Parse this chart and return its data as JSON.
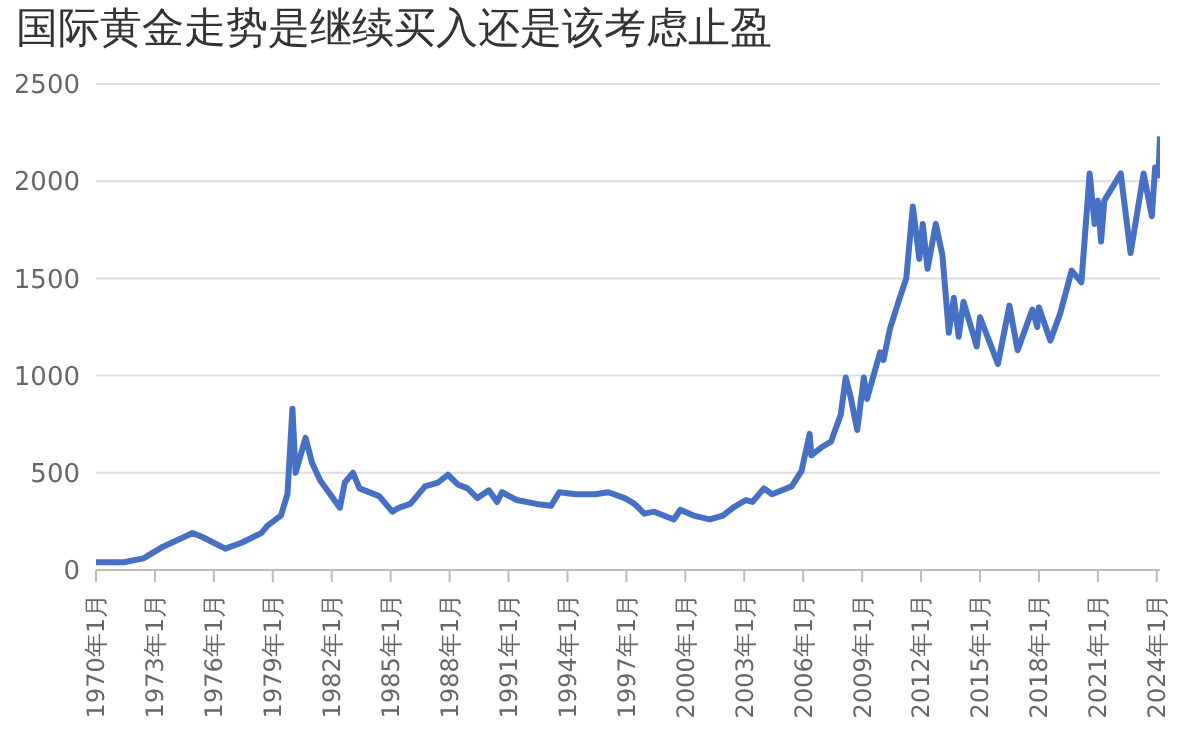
{
  "chart_data": {
    "type": "line",
    "title": "国际黄金走势是继续买入还是该考虑止盈",
    "x": [
      "1970-01",
      "1971-06",
      "1972-06",
      "1973-06",
      "1974-12",
      "1975-06",
      "1976-08",
      "1977-06",
      "1978-06",
      "1978-10",
      "1979-06",
      "1979-10",
      "1980-01",
      "1980-03",
      "1980-09",
      "1981-01",
      "1981-06",
      "1982-06",
      "1982-09",
      "1983-02",
      "1983-06",
      "1984-06",
      "1985-02",
      "1985-06",
      "1986-01",
      "1986-10",
      "1987-06",
      "1987-12",
      "1988-06",
      "1988-12",
      "1989-06",
      "1990-01",
      "1990-06",
      "1990-09",
      "1991-06",
      "1992-06",
      "1993-03",
      "1993-08",
      "1994-06",
      "1995-06",
      "1996-02",
      "1996-12",
      "1997-06",
      "1997-12",
      "1998-06",
      "1999-06",
      "1999-10",
      "2000-06",
      "2001-04",
      "2001-12",
      "2002-06",
      "2003-02",
      "2003-06",
      "2004-01",
      "2004-06",
      "2005-06",
      "2005-12",
      "2006-05",
      "2006-06",
      "2006-12",
      "2007-06",
      "2007-12",
      "2008-03",
      "2008-06",
      "2008-10",
      "2009-02",
      "2009-04",
      "2009-12",
      "2010-02",
      "2010-06",
      "2010-12",
      "2011-04",
      "2011-08",
      "2011-12",
      "2012-02",
      "2012-05",
      "2012-10",
      "2013-02",
      "2013-06",
      "2013-09",
      "2013-12",
      "2014-03",
      "2014-11",
      "2015-01",
      "2015-12",
      "2016-07",
      "2016-12",
      "2017-09",
      "2017-12",
      "2018-01",
      "2018-08",
      "2019-02",
      "2019-09",
      "2020-03",
      "2020-08",
      "2020-11",
      "2021-01",
      "2021-03",
      "2021-05",
      "2022-03",
      "2022-09",
      "2023-05",
      "2023-10",
      "2023-12",
      "2024-02",
      "2024-03"
    ],
    "series": [
      {
        "color": "#4670c4",
        "values": [
          40,
          40,
          60,
          120,
          190,
          170,
          110,
          140,
          190,
          230,
          280,
          390,
          830,
          500,
          680,
          550,
          460,
          320,
          450,
          500,
          420,
          380,
          300,
          320,
          340,
          430,
          450,
          490,
          440,
          420,
          370,
          410,
          350,
          400,
          360,
          340,
          330,
          400,
          390,
          390,
          400,
          370,
          340,
          290,
          300,
          260,
          310,
          280,
          260,
          280,
          320,
          360,
          350,
          420,
          390,
          430,
          510,
          700,
          590,
          630,
          660,
          800,
          990,
          890,
          720,
          990,
          880,
          1120,
          1080,
          1240,
          1400,
          1500,
          1870,
          1600,
          1780,
          1550,
          1780,
          1620,
          1220,
          1400,
          1200,
          1380,
          1150,
          1300,
          1060,
          1360,
          1130,
          1340,
          1250,
          1350,
          1180,
          1320,
          1540,
          1480,
          2040,
          1780,
          1900,
          1690,
          1900,
          2040,
          1630,
          2040,
          1820,
          2070,
          2030,
          2230
        ]
      }
    ],
    "xlim": [
      "1970-01",
      "2024-03"
    ],
    "xticks": [
      {
        "value": "1970-01",
        "label": "1970年1月"
      },
      {
        "value": "1973-01",
        "label": "1973年1月"
      },
      {
        "value": "1976-01",
        "label": "1976年1月"
      },
      {
        "value": "1979-01",
        "label": "1979年1月"
      },
      {
        "value": "1982-01",
        "label": "1982年1月"
      },
      {
        "value": "1985-01",
        "label": "1985年1月"
      },
      {
        "value": "1988-01",
        "label": "1988年1月"
      },
      {
        "value": "1991-01",
        "label": "1991年1月"
      },
      {
        "value": "1994-01",
        "label": "1994年1月"
      },
      {
        "value": "1997-01",
        "label": "1997年1月"
      },
      {
        "value": "2000-01",
        "label": "2000年1月"
      },
      {
        "value": "2003-01",
        "label": "2003年1月"
      },
      {
        "value": "2006-01",
        "label": "2006年1月"
      },
      {
        "value": "2009-01",
        "label": "2009年1月"
      },
      {
        "value": "2012-01",
        "label": "2012年1月"
      },
      {
        "value": "2015-01",
        "label": "2015年1月"
      },
      {
        "value": "2018-01",
        "label": "2018年1月"
      },
      {
        "value": "2021-01",
        "label": "2021年1月"
      },
      {
        "value": "2024-01",
        "label": "2024年1月"
      }
    ],
    "ylim": [
      0,
      2500
    ],
    "yticks": [
      0,
      500,
      1000,
      1500,
      2000,
      2500
    ],
    "grid": "y",
    "marker": "none",
    "line_style": "solid"
  }
}
